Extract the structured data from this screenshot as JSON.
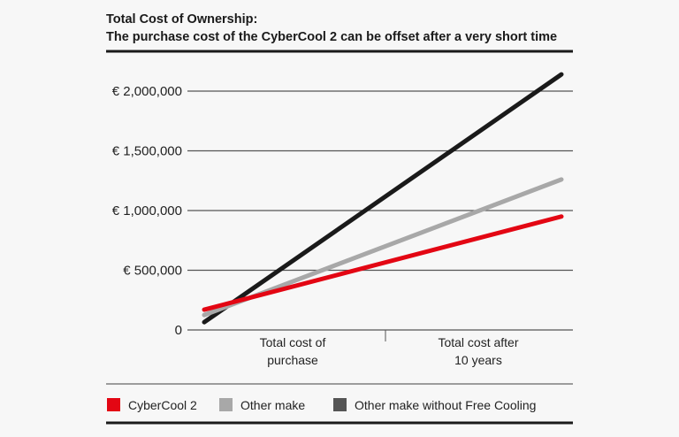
{
  "chart_data": {
    "type": "line",
    "title": "Total Cost of Ownership:",
    "subtitle": "The purchase cost of the CyberCool 2 can be offset after a very short time",
    "categories": [
      "Total cost of purchase",
      "Total cost after 10 years"
    ],
    "category_lines": [
      [
        "Total cost of",
        "purchase"
      ],
      [
        "Total cost after",
        "10 years"
      ]
    ],
    "yticks": [
      {
        "value": 0,
        "label": "0"
      },
      {
        "value": 500000,
        "label": "€ 500,000"
      },
      {
        "value": 1000000,
        "label": "€ 1,000,000"
      },
      {
        "value": 1500000,
        "label": "€ 1,500,000"
      },
      {
        "value": 2000000,
        "label": "€ 2,000,000"
      }
    ],
    "ylim": [
      0,
      2000000
    ],
    "grid": true,
    "legend_position": "bottom",
    "series": [
      {
        "name": "CyberCool 2",
        "color": "#e30613",
        "values": [
          170000,
          950000
        ]
      },
      {
        "name": "Other make",
        "color": "#a8a8a8",
        "values": [
          125000,
          1260000
        ]
      },
      {
        "name": "Other make without Free Cooling",
        "color": "#1a1a1a",
        "legend_color": "#555555",
        "values": [
          65000,
          2140000
        ]
      }
    ]
  }
}
